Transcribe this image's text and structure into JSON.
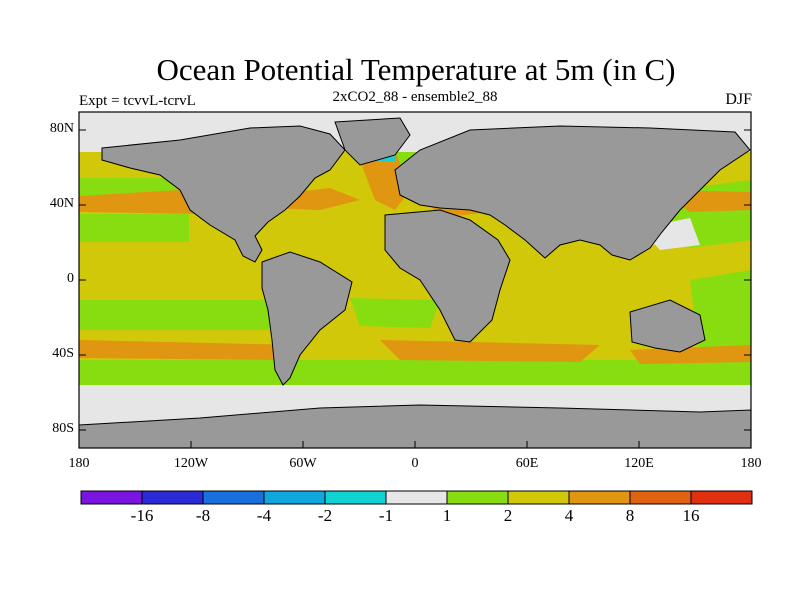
{
  "header": {
    "title": "Ocean Potential Temperature at 5m (in C)",
    "experiment": "Expt = tcvvL-tcrvL",
    "run": "2xCO2_88 - ensemble2_88",
    "season": "DJF"
  },
  "map": {
    "projection": "cylindrical-equidistant",
    "lat_labels": [
      "80N",
      "40N",
      "0",
      "40S",
      "80S"
    ],
    "lon_labels": [
      "180",
      "120W",
      "60W",
      "0",
      "60E",
      "120E",
      "180"
    ],
    "colors": {
      "land": "#999999",
      "band_minus1_1": "#e6e6e6",
      "band_1_2": "#88dd11",
      "band_2_4": "#d2c80a",
      "band_4_8": "#e09610",
      "anomaly_cold": "#22cccc"
    }
  },
  "colorbar": {
    "labels": [
      "-16",
      "-8",
      "-4",
      "-2",
      "-1",
      "1",
      "2",
      "4",
      "8",
      "16"
    ],
    "colors": [
      "#7a14e0",
      "#2a2ad6",
      "#1870dc",
      "#10a8dc",
      "#10d2d2",
      "#e6e6e6",
      "#88dd11",
      "#d2c80a",
      "#e09610",
      "#e06410",
      "#e03010"
    ]
  }
}
